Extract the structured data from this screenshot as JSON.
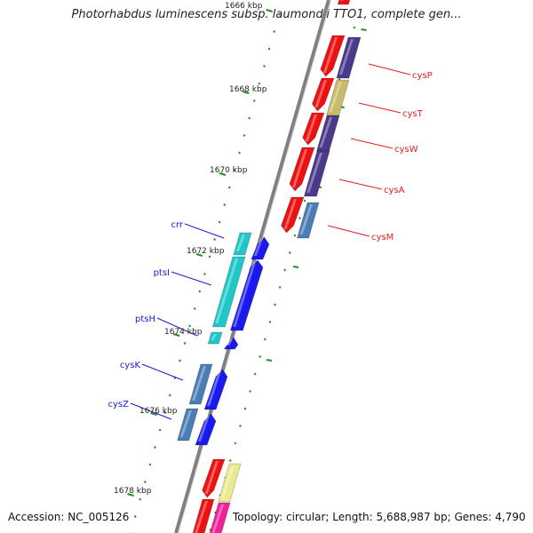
{
  "title": "Photorhabdus luminescens subsp. laumondii TTO1, complete gen...",
  "footer": {
    "accession": "Accession: NC_005126",
    "summary": "Topology: circular; Length: 5,688,987 bp; Genes: 4,790"
  },
  "ruler": {
    "unit": "kbp",
    "top_label": "1666 kbp",
    "labels": [
      "1668 kbp",
      "1670 kbp",
      "1672 kbp",
      "1674 kbp",
      "1676 kbp",
      "1678 kbp"
    ]
  },
  "genes": [
    {
      "name": "cysP",
      "strand": "forward",
      "color": "#e02020"
    },
    {
      "name": "cysT",
      "strand": "forward",
      "color": "#e02020"
    },
    {
      "name": "cysW",
      "strand": "forward",
      "color": "#e02020"
    },
    {
      "name": "cysA",
      "strand": "forward",
      "color": "#e02020"
    },
    {
      "name": "cysM",
      "strand": "forward",
      "color": "#e02020"
    },
    {
      "name": "crr",
      "strand": "reverse",
      "color": "#1a1ad0"
    },
    {
      "name": "ptsI",
      "strand": "reverse",
      "color": "#1a1ad0"
    },
    {
      "name": "ptsH",
      "strand": "reverse",
      "color": "#1a1ad0"
    },
    {
      "name": "cysK",
      "strand": "reverse",
      "color": "#1a1ad0"
    },
    {
      "name": "cysZ",
      "strand": "reverse",
      "color": "#1a1ad0"
    }
  ],
  "colors": {
    "forward_cds": "#ee1111",
    "reverse_cds": "#1a1aee",
    "cog_purple": "#4b3a8a",
    "cog_olive": "#c8bb6a",
    "cog_steel": "#4a7db5",
    "cog_cyan": "#1fc8c8",
    "cog_yellow": "#ecea90",
    "cog_magenta": "#ee2299",
    "tick_green": "#2a8a2a",
    "backbone": "#808080"
  }
}
